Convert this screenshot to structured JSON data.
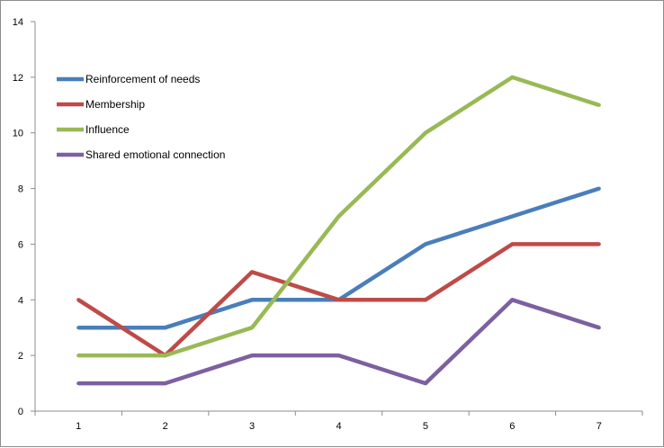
{
  "chart_data": {
    "type": "line",
    "title": "",
    "xlabel": "",
    "ylabel": "",
    "categories": [
      "1",
      "2",
      "3",
      "4",
      "5",
      "6",
      "7"
    ],
    "ylim": [
      0,
      14
    ],
    "yticks": [
      0,
      2,
      4,
      6,
      8,
      10,
      12,
      14
    ],
    "grid": false,
    "legend_position": "top-left",
    "series": [
      {
        "name": "Reinforcement of needs",
        "color": "#4a7ebb",
        "values": [
          3,
          3,
          4,
          4,
          6,
          7,
          8
        ]
      },
      {
        "name": "Membership",
        "color": "#be4b48",
        "values": [
          4,
          2,
          5,
          4,
          4,
          6,
          6
        ]
      },
      {
        "name": "Influence",
        "color": "#98b954",
        "values": [
          2,
          2,
          3,
          7,
          10,
          12,
          11
        ]
      },
      {
        "name": "Shared emotional connection",
        "color": "#7d60a0",
        "values": [
          1,
          1,
          2,
          2,
          1,
          4,
          3
        ]
      }
    ]
  }
}
